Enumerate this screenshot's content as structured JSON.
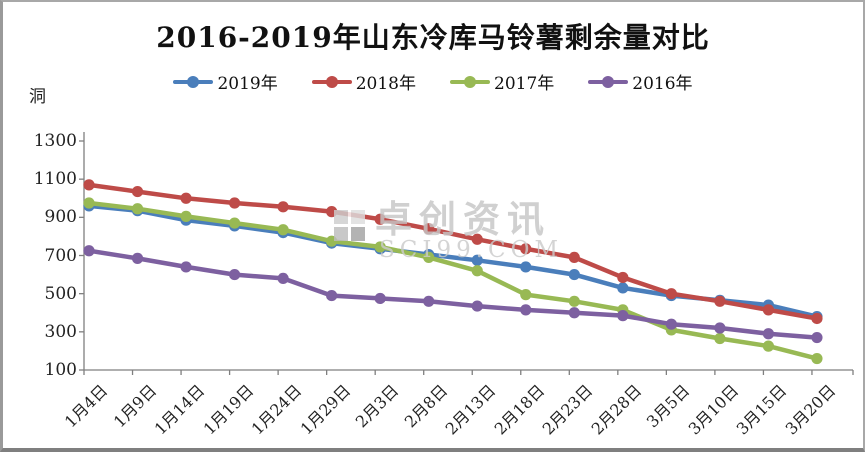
{
  "chart_data": {
    "type": "line",
    "title": "2016-2019年山东冷库马铃薯剩余量对比",
    "unit_label": "洞",
    "xlabel": "",
    "ylabel": "洞",
    "ylim": [
      100,
      1300
    ],
    "y_ticks": [
      100,
      300,
      500,
      700,
      900,
      1100,
      1300
    ],
    "grid": false,
    "legend_position": "top",
    "categories": [
      "1月4日",
      "1月9日",
      "1月14日",
      "1月19日",
      "1月24日",
      "1月29日",
      "2月3日",
      "2月8日",
      "2月13日",
      "2月18日",
      "2月23日",
      "2月28日",
      "3月5日",
      "3月10日",
      "3月15日",
      "3月20日"
    ],
    "series": [
      {
        "name": "2019年",
        "color": "#4a7ebb",
        "values": [
          960,
          935,
          885,
          855,
          820,
          765,
          735,
          705,
          675,
          640,
          600,
          530,
          490,
          465,
          440,
          380
        ]
      },
      {
        "name": "2018年",
        "color": "#be4b48",
        "values": [
          1070,
          1035,
          1000,
          975,
          955,
          930,
          890,
          840,
          785,
          735,
          690,
          585,
          500,
          460,
          415,
          370
        ]
      },
      {
        "name": "2017年",
        "color": "#98b954",
        "values": [
          975,
          945,
          905,
          870,
          835,
          775,
          745,
          690,
          620,
          495,
          460,
          415,
          310,
          265,
          225,
          160
        ]
      },
      {
        "name": "2016年",
        "color": "#7d60a0",
        "values": [
          725,
          685,
          640,
          600,
          580,
          490,
          475,
          460,
          435,
          415,
          400,
          385,
          340,
          320,
          290,
          270
        ]
      }
    ]
  },
  "watermark": {
    "line1": "卓创资讯",
    "line2": "SCI99.COM"
  }
}
